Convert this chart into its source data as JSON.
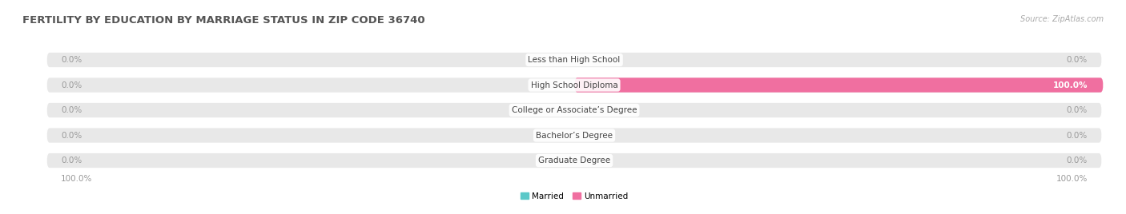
{
  "title": "FERTILITY BY EDUCATION BY MARRIAGE STATUS IN ZIP CODE 36740",
  "source": "Source: ZipAtlas.com",
  "categories": [
    "Less than High School",
    "High School Diploma",
    "College or Associate’s Degree",
    "Bachelor’s Degree",
    "Graduate Degree"
  ],
  "married_values": [
    0.0,
    0.0,
    0.0,
    0.0,
    0.0
  ],
  "unmarried_values": [
    0.0,
    100.0,
    0.0,
    0.0,
    0.0
  ],
  "married_color": "#5BC8C8",
  "unmarried_color": "#F06FA0",
  "bar_track_color": "#E8E8E8",
  "bg_color": "#FFFFFF",
  "title_color": "#555555",
  "value_text_color": "#999999",
  "legend_married": "Married",
  "legend_unmarried": "Unmarried",
  "x_min": -100,
  "x_max": 100,
  "left_label": "100.0%",
  "right_label": "100.0%",
  "bar_height": 0.58,
  "title_fontsize": 9.5,
  "label_fontsize": 7.5,
  "value_fontsize": 7.5,
  "source_fontsize": 7
}
